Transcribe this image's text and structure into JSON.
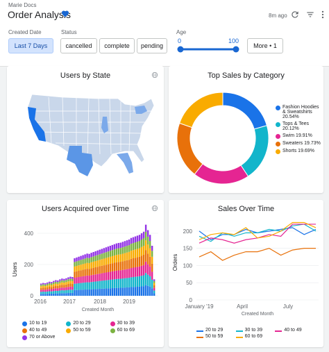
{
  "header": {
    "breadcrumb": "Marie Docs",
    "title": "Order Analysis",
    "updated": "8m ago"
  },
  "filters": {
    "created_date": {
      "label": "Created Date",
      "value": "Last 7 Days"
    },
    "status": {
      "label": "Status",
      "options": [
        "cancelled",
        "complete",
        "pending"
      ]
    },
    "age": {
      "label": "Age",
      "min": "0",
      "max": "100",
      "min_value": 0,
      "max_value": 100
    },
    "more": "More • 1"
  },
  "colors": {
    "accent": "#1967d2",
    "series": [
      "#1a73e8",
      "#12b5cb",
      "#e52592",
      "#e8710a",
      "#f9ab00",
      "#7cb342",
      "#9334e6"
    ]
  },
  "icons": [
    "heart-icon",
    "refresh-icon",
    "filter-icon",
    "more-vert-icon",
    "globe-icon"
  ],
  "cards": {
    "users_by_state": {
      "title": "Users by State"
    },
    "top_sales": {
      "title": "Top Sales by Category"
    },
    "users_acquired": {
      "title": "Users Acquired over Time"
    },
    "sales_over_time": {
      "title": "Sales Over Time"
    }
  },
  "chart_data": [
    {
      "type": "map",
      "title": "Users by State",
      "highlighted_states": [
        "California",
        "Texas",
        "New York",
        "Florida",
        "Illinois"
      ]
    },
    {
      "type": "pie",
      "title": "Top Sales by Category",
      "donut": true,
      "slices": [
        {
          "name": "Fashion Hoodies & Sweatshirts",
          "value": 20.54,
          "label": "20.54%"
        },
        {
          "name": "Tops & Tees",
          "value": 20.12,
          "label": "20.12%"
        },
        {
          "name": "Swim",
          "value": 19.91,
          "label": "19.91%"
        },
        {
          "name": "Sweaters",
          "value": 19.73,
          "label": "19.73%"
        },
        {
          "name": "Shorts",
          "value": 19.69,
          "label": "19.69%"
        }
      ],
      "legend": "right"
    },
    {
      "type": "bar",
      "stacked": true,
      "title": "Users Acquired over Time",
      "xlabel": "Created Month",
      "ylabel": "Users",
      "ylim": [
        0,
        480
      ],
      "yticks": [
        "0",
        "200",
        "400"
      ],
      "xticks": [
        "2016",
        "2017",
        "2018",
        "2019"
      ],
      "legend": "bottom",
      "series_names": [
        "10 to 19",
        "20 to 29",
        "30 to 39",
        "40 to 49",
        "50 to 59",
        "60 to 69",
        "70 or Above"
      ],
      "totals": [
        78,
        82,
        80,
        85,
        90,
        88,
        95,
        100,
        98,
        105,
        110,
        108,
        112,
        118,
        122,
        120,
        240,
        245,
        250,
        255,
        260,
        265,
        270,
        268,
        275,
        280,
        285,
        290,
        295,
        300,
        305,
        310,
        315,
        320,
        325,
        330,
        335,
        338,
        340,
        345,
        350,
        355,
        360,
        370,
        375,
        380,
        385,
        390,
        400,
        410,
        455,
        420,
        390,
        320,
        105
      ]
    },
    {
      "type": "line",
      "title": "Sales Over Time",
      "xlabel": "Created Month",
      "ylabel": "Orders",
      "ylim": [
        0,
        230
      ],
      "yticks": [
        "0",
        "50",
        "100",
        "150",
        "200"
      ],
      "xticks": [
        "January '19",
        "April",
        "July"
      ],
      "legend": "bottom",
      "series": [
        {
          "name": "20 to 29",
          "values": [
            200,
            175,
            190,
            190,
            205,
            195,
            200,
            205,
            210,
            190,
            205
          ]
        },
        {
          "name": "30 to 39",
          "values": [
            185,
            170,
            195,
            185,
            195,
            195,
            205,
            200,
            215,
            220,
            200
          ]
        },
        {
          "name": "40 to 49",
          "values": [
            165,
            180,
            175,
            165,
            175,
            180,
            190,
            185,
            220,
            220,
            220
          ]
        },
        {
          "name": "50 to 59",
          "values": [
            125,
            140,
            115,
            130,
            140,
            140,
            150,
            130,
            145,
            150,
            150
          ]
        },
        {
          "name": "60 to 69",
          "values": [
            175,
            190,
            195,
            190,
            210,
            180,
            185,
            200,
            225,
            225,
            210
          ]
        }
      ]
    }
  ]
}
